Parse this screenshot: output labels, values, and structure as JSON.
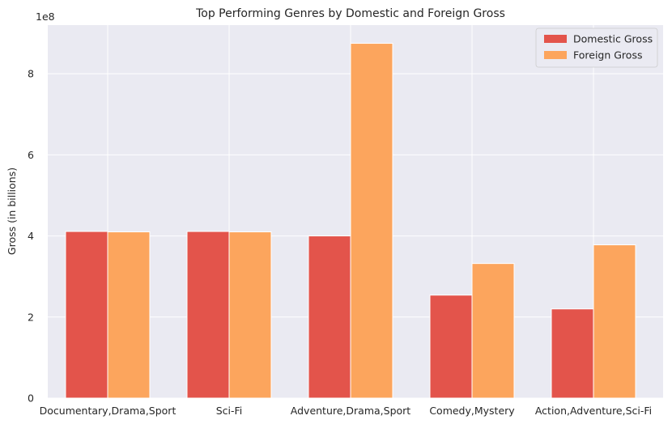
{
  "chart_data": {
    "type": "bar",
    "title": "Top Performing Genres by Domestic and Foreign Gross",
    "xlabel": "",
    "ylabel": "Gross (in billions)",
    "y_offset_label": "1e8",
    "y_scale": 100000000,
    "ylim": [
      0,
      920000000
    ],
    "yticks": [
      0,
      200000000,
      400000000,
      600000000,
      800000000
    ],
    "ytick_labels": [
      "0",
      "2",
      "4",
      "6",
      "8"
    ],
    "grid": true,
    "legend_placement": "top-right",
    "categories": [
      "Documentary,Drama,Sport",
      "Sci-Fi",
      "Adventure,Drama,Sport",
      "Comedy,Mystery",
      "Action,Adventure,Sci-Fi"
    ],
    "series": [
      {
        "name": "Domestic Gross",
        "color": "#e3544b",
        "values": [
          411000000,
          411000000,
          400000000,
          254000000,
          220000000
        ]
      },
      {
        "name": "Foreign Gross",
        "color": "#fca55d",
        "values": [
          410000000,
          410000000,
          875000000,
          332000000,
          378000000
        ]
      }
    ]
  }
}
